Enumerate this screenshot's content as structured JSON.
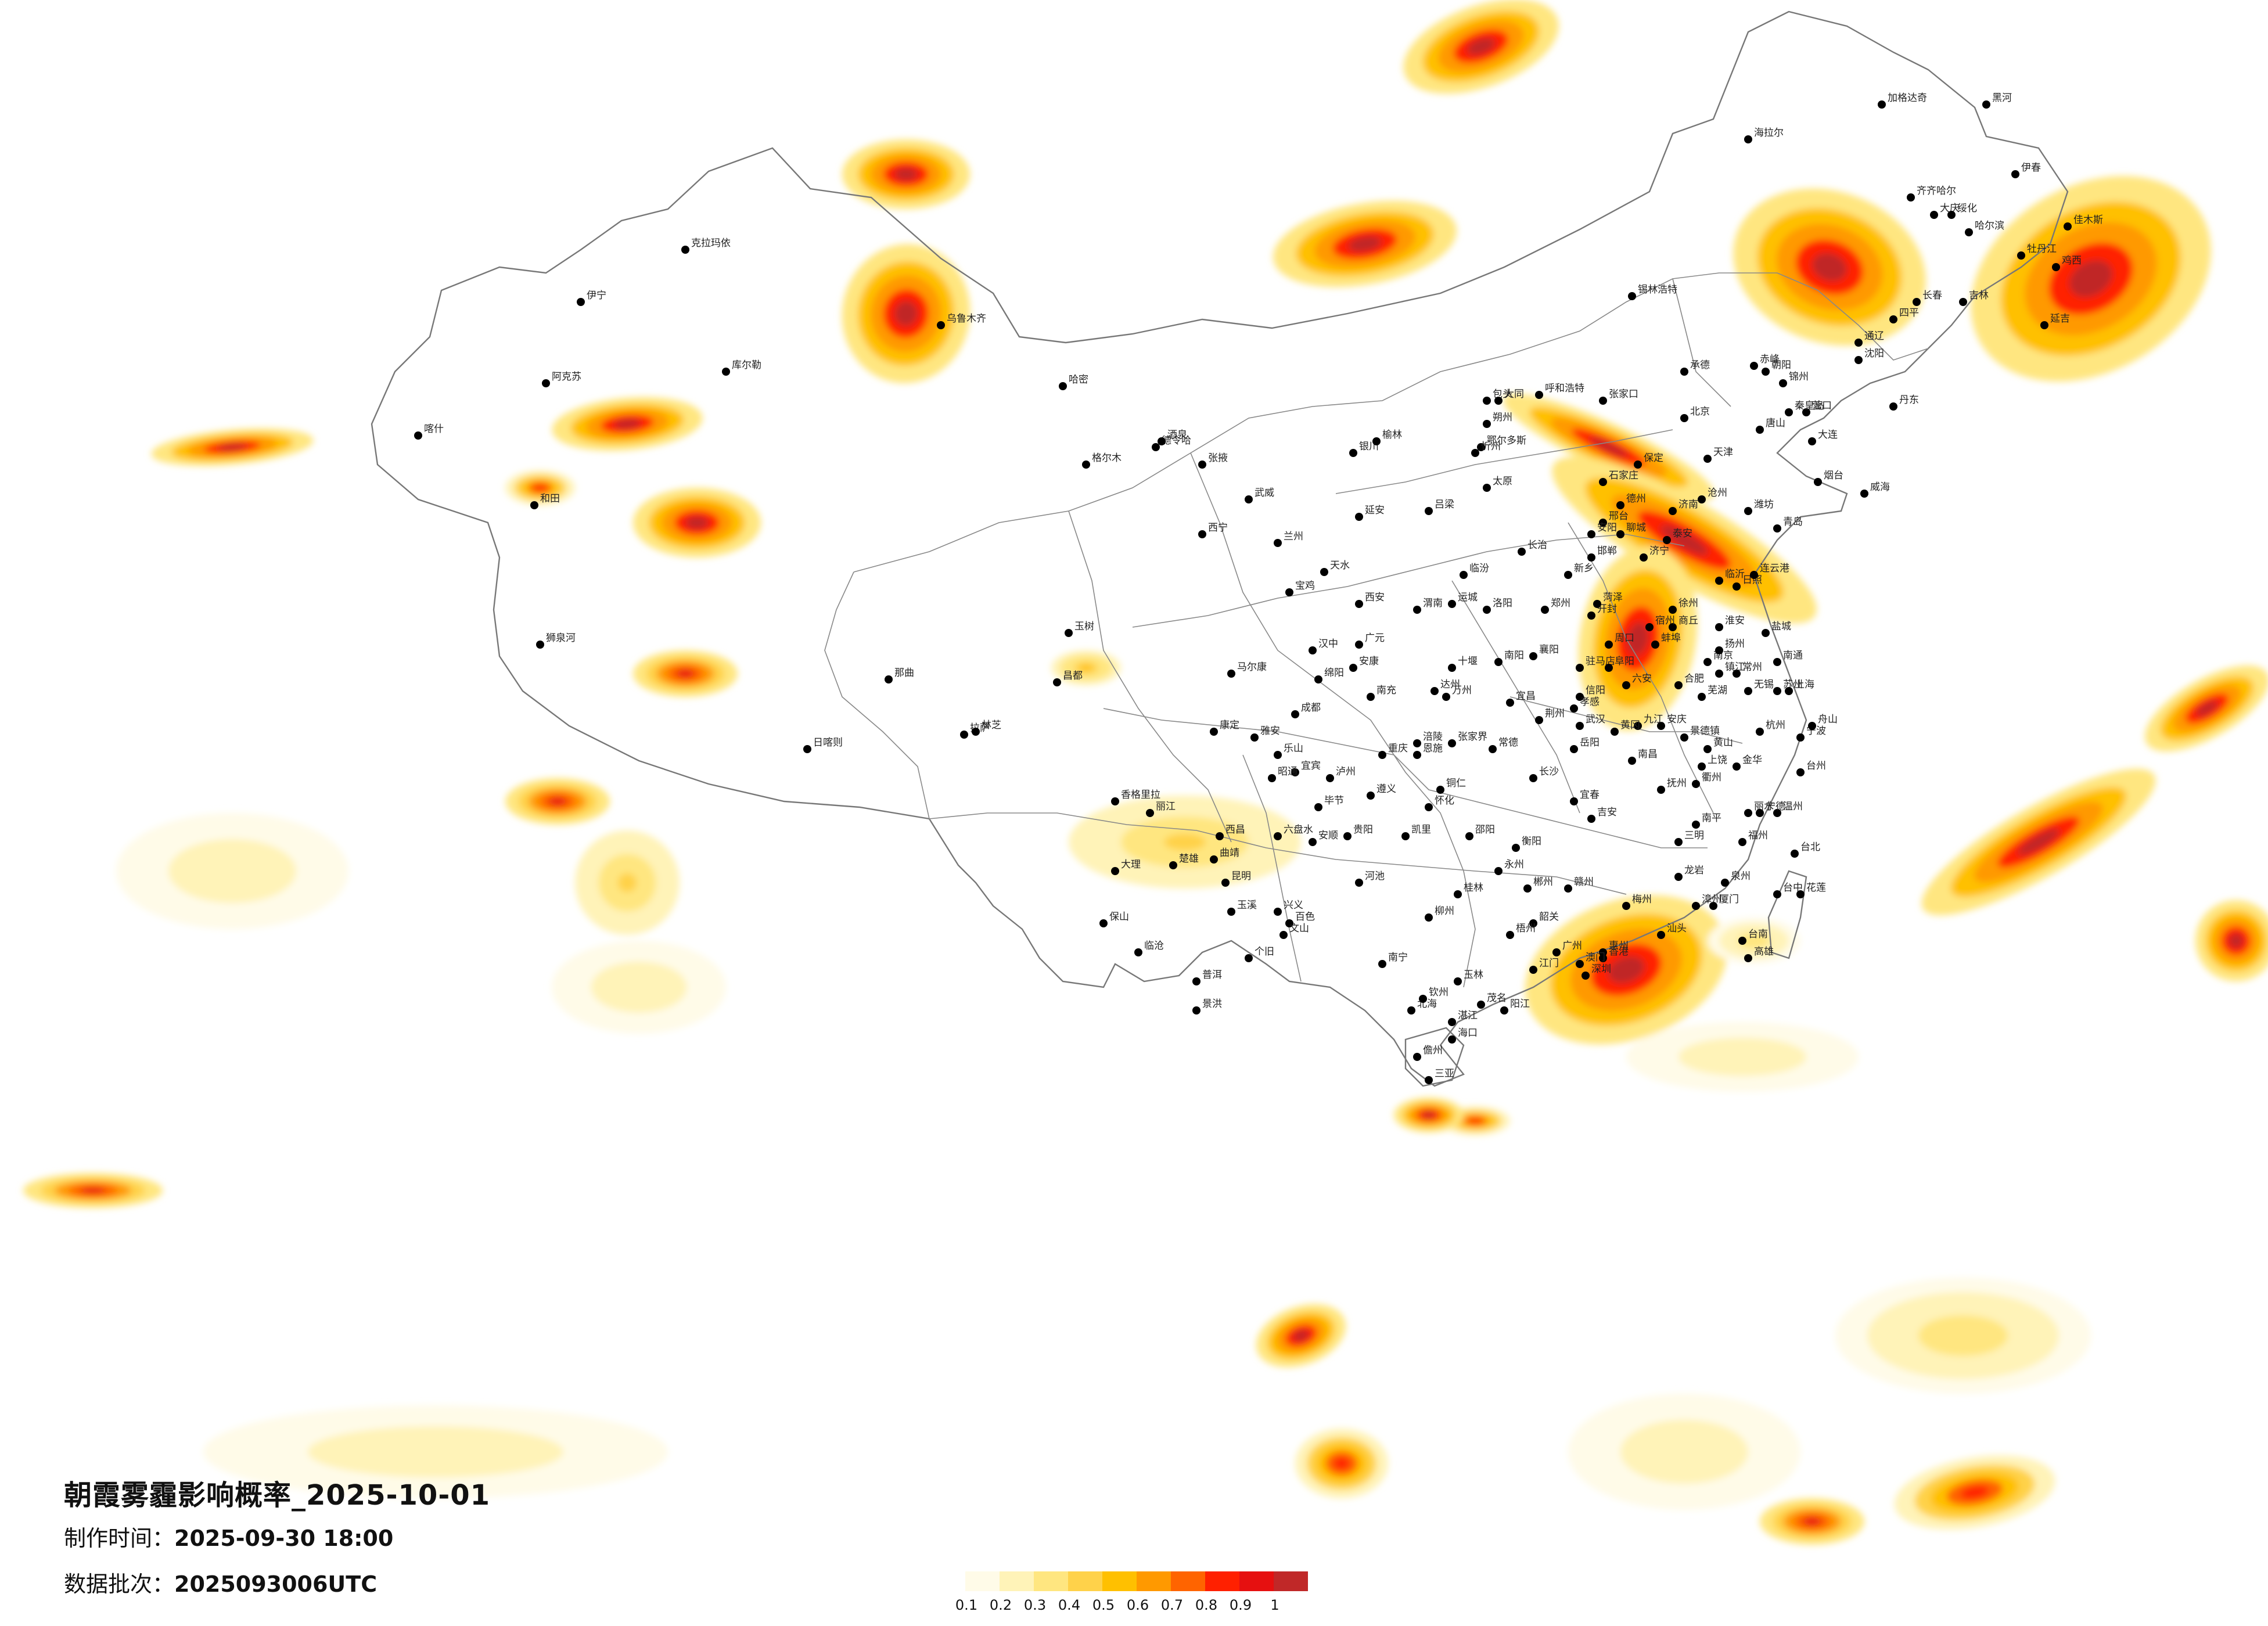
{
  "title": "朝霞雾霾影响概率_2025-10-01",
  "made": {
    "label": "制作时间：",
    "value": "2025-09-30 18:00"
  },
  "batch": {
    "label": "数据批次：",
    "value": "2025093006UTC"
  },
  "legend": {
    "ticks": [
      "0.1",
      "0.2",
      "0.3",
      "0.4",
      "0.5",
      "0.6",
      "0.7",
      "0.8",
      "0.9",
      "1"
    ],
    "colors": [
      "#fffbe8",
      "#fff3b8",
      "#ffe680",
      "#ffd24a",
      "#ffc000",
      "#ff9900",
      "#ff6400",
      "#ff2000",
      "#e61010",
      "#c02828"
    ]
  },
  "cities": [
    {
      "n": "乌鲁木齐"
    },
    {
      "n": "克拉玛依"
    },
    {
      "n": "伊宁"
    },
    {
      "n": "阿克苏"
    },
    {
      "n": "喀什"
    },
    {
      "n": "和田"
    },
    {
      "n": "库尔勒"
    },
    {
      "n": "哈密"
    },
    {
      "n": "拉萨"
    },
    {
      "n": "日喀则"
    },
    {
      "n": "林芝"
    },
    {
      "n": "那曲"
    },
    {
      "n": "昌都"
    },
    {
      "n": "狮泉河"
    },
    {
      "n": "西宁"
    },
    {
      "n": "格尔木"
    },
    {
      "n": "德令哈"
    },
    {
      "n": "玉树"
    },
    {
      "n": "兰州"
    },
    {
      "n": "酒泉"
    },
    {
      "n": "张掖"
    },
    {
      "n": "武威"
    },
    {
      "n": "天水"
    },
    {
      "n": "银川"
    },
    {
      "n": "呼和浩特"
    },
    {
      "n": "包头"
    },
    {
      "n": "鄂尔多斯"
    },
    {
      "n": "锡林浩特"
    },
    {
      "n": "赤峰"
    },
    {
      "n": "通辽"
    },
    {
      "n": "海拉尔"
    },
    {
      "n": "加格达奇"
    },
    {
      "n": "哈尔滨"
    },
    {
      "n": "齐齐哈尔"
    },
    {
      "n": "大庆"
    },
    {
      "n": "牡丹江"
    },
    {
      "n": "佳木斯"
    },
    {
      "n": "黑河"
    },
    {
      "n": "伊春"
    },
    {
      "n": "绥化"
    },
    {
      "n": "鸡西"
    },
    {
      "n": "长春"
    },
    {
      "n": "吉林"
    },
    {
      "n": "延吉"
    },
    {
      "n": "四平"
    },
    {
      "n": "沈阳"
    },
    {
      "n": "大连"
    },
    {
      "n": "丹东"
    },
    {
      "n": "锦州"
    },
    {
      "n": "营口"
    },
    {
      "n": "朝阳"
    },
    {
      "n": "北京"
    },
    {
      "n": "天津"
    },
    {
      "n": "石家庄"
    },
    {
      "n": "保定"
    },
    {
      "n": "唐山"
    },
    {
      "n": "张家口"
    },
    {
      "n": "承德"
    },
    {
      "n": "秦皇岛"
    },
    {
      "n": "沧州"
    },
    {
      "n": "邢台"
    },
    {
      "n": "邯郸"
    },
    {
      "n": "太原"
    },
    {
      "n": "大同"
    },
    {
      "n": "忻州"
    },
    {
      "n": "长治"
    },
    {
      "n": "临汾"
    },
    {
      "n": "运城"
    },
    {
      "n": "朔州"
    },
    {
      "n": "吕梁"
    },
    {
      "n": "西安"
    },
    {
      "n": "延安"
    },
    {
      "n": "榆林"
    },
    {
      "n": "宝鸡"
    },
    {
      "n": "汉中"
    },
    {
      "n": "安康"
    },
    {
      "n": "渭南"
    },
    {
      "n": "郑州"
    },
    {
      "n": "洛阳"
    },
    {
      "n": "开封"
    },
    {
      "n": "新乡"
    },
    {
      "n": "安阳"
    },
    {
      "n": "商丘"
    },
    {
      "n": "南阳"
    },
    {
      "n": "信阳"
    },
    {
      "n": "周口"
    },
    {
      "n": "驻马店"
    },
    {
      "n": "济南"
    },
    {
      "n": "青岛"
    },
    {
      "n": "烟台"
    },
    {
      "n": "威海"
    },
    {
      "n": "潍坊"
    },
    {
      "n": "临沂"
    },
    {
      "n": "济宁"
    },
    {
      "n": "德州"
    },
    {
      "n": "聊城"
    },
    {
      "n": "菏泽"
    },
    {
      "n": "日照"
    },
    {
      "n": "泰安"
    },
    {
      "n": "连云港"
    },
    {
      "n": "南京"
    },
    {
      "n": "徐州"
    },
    {
      "n": "淮安"
    },
    {
      "n": "盐城"
    },
    {
      "n": "扬州"
    },
    {
      "n": "南通"
    },
    {
      "n": "苏州"
    },
    {
      "n": "无锡"
    },
    {
      "n": "常州"
    },
    {
      "n": "镇江"
    },
    {
      "n": "上海"
    },
    {
      "n": "杭州"
    },
    {
      "n": "宁波"
    },
    {
      "n": "温州"
    },
    {
      "n": "金华"
    },
    {
      "n": "台州"
    },
    {
      "n": "衢州"
    },
    {
      "n": "丽水"
    },
    {
      "n": "舟山"
    },
    {
      "n": "合肥"
    },
    {
      "n": "芜湖"
    },
    {
      "n": "蚌埠"
    },
    {
      "n": "阜阳"
    },
    {
      "n": "安庆"
    },
    {
      "n": "黄山"
    },
    {
      "n": "六安"
    },
    {
      "n": "宿州"
    },
    {
      "n": "南昌"
    },
    {
      "n": "九江"
    },
    {
      "n": "赣州"
    },
    {
      "n": "吉安"
    },
    {
      "n": "上饶"
    },
    {
      "n": "景德镇"
    },
    {
      "n": "宜春"
    },
    {
      "n": "抚州"
    },
    {
      "n": "福州"
    },
    {
      "n": "厦门"
    },
    {
      "n": "泉州"
    },
    {
      "n": "漳州"
    },
    {
      "n": "龙岩"
    },
    {
      "n": "南平"
    },
    {
      "n": "三明"
    },
    {
      "n": "宁德"
    },
    {
      "n": "武汉"
    },
    {
      "n": "宜昌"
    },
    {
      "n": "襄阳"
    },
    {
      "n": "荆州"
    },
    {
      "n": "十堰"
    },
    {
      "n": "恩施"
    },
    {
      "n": "黄冈"
    },
    {
      "n": "孝感"
    },
    {
      "n": "长沙"
    },
    {
      "n": "衡阳"
    },
    {
      "n": "岳阳"
    },
    {
      "n": "常德"
    },
    {
      "n": "邵阳"
    },
    {
      "n": "怀化"
    },
    {
      "n": "郴州"
    },
    {
      "n": "永州"
    },
    {
      "n": "张家界"
    },
    {
      "n": "广州"
    },
    {
      "n": "深圳"
    },
    {
      "n": "汕头"
    },
    {
      "n": "湛江"
    },
    {
      "n": "韶关"
    },
    {
      "n": "梅州"
    },
    {
      "n": "惠州"
    },
    {
      "n": "茂名"
    },
    {
      "n": "江门"
    },
    {
      "n": "阳江"
    },
    {
      "n": "南宁"
    },
    {
      "n": "桂林"
    },
    {
      "n": "柳州"
    },
    {
      "n": "梧州"
    },
    {
      "n": "北海"
    },
    {
      "n": "百色"
    },
    {
      "n": "河池"
    },
    {
      "n": "玉林"
    },
    {
      "n": "钦州"
    },
    {
      "n": "海口"
    },
    {
      "n": "三亚"
    },
    {
      "n": "儋州"
    },
    {
      "n": "成都"
    },
    {
      "n": "绵阳"
    },
    {
      "n": "南充"
    },
    {
      "n": "宜宾"
    },
    {
      "n": "泸州"
    },
    {
      "n": "达州"
    },
    {
      "n": "雅安"
    },
    {
      "n": "西昌"
    },
    {
      "n": "乐山"
    },
    {
      "n": "康定"
    },
    {
      "n": "马尔康"
    },
    {
      "n": "广元"
    },
    {
      "n": "重庆"
    },
    {
      "n": "万州"
    },
    {
      "n": "涪陵"
    },
    {
      "n": "贵阳"
    },
    {
      "n": "遵义"
    },
    {
      "n": "六盘水"
    },
    {
      "n": "安顺"
    },
    {
      "n": "兴义"
    },
    {
      "n": "凯里"
    },
    {
      "n": "铜仁"
    },
    {
      "n": "毕节"
    },
    {
      "n": "昆明"
    },
    {
      "n": "大理"
    },
    {
      "n": "丽江"
    },
    {
      "n": "曲靖"
    },
    {
      "n": "玉溪"
    },
    {
      "n": "保山"
    },
    {
      "n": "普洱"
    },
    {
      "n": "景洪"
    },
    {
      "n": "文山"
    },
    {
      "n": "个旧"
    },
    {
      "n": "临沧"
    },
    {
      "n": "楚雄"
    },
    {
      "n": "昭通"
    },
    {
      "n": "香格里拉"
    },
    {
      "n": "台北"
    },
    {
      "n": "台中"
    },
    {
      "n": "高雄"
    },
    {
      "n": "台南"
    },
    {
      "n": "花莲"
    },
    {
      "n": "香港"
    },
    {
      "n": "澳门"
    }
  ]
}
